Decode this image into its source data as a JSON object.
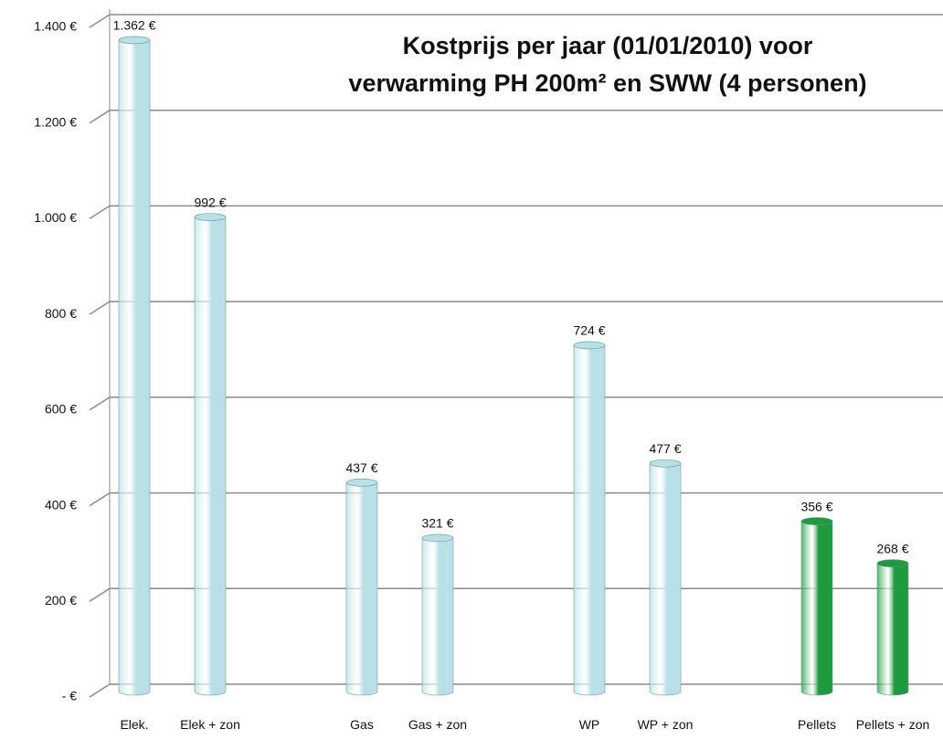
{
  "chart_data": {
    "type": "bar",
    "title": [
      "Kostprijs per jaar (01/01/2010) voor",
      "verwarming PH 200m² en SWW (4 personen)"
    ],
    "categories": [
      "Elek.",
      "Elek + zon",
      null,
      "Gas",
      "Gas + zon",
      null,
      "WP",
      "WP + zon",
      null,
      "Pellets",
      "Pellets + zon"
    ],
    "values": [
      1362,
      992,
      null,
      437,
      321,
      null,
      724,
      477,
      null,
      356,
      268
    ],
    "value_labels": [
      "1.362 €",
      "992 €",
      null,
      "437 €",
      "321 €",
      null,
      "724 €",
      "477 €",
      null,
      "356 €",
      "268 €"
    ],
    "colors": [
      "#b9e0e6",
      "#b9e0e6",
      null,
      "#b9e0e6",
      "#b9e0e6",
      null,
      "#b9e0e6",
      "#b9e0e6",
      null,
      "#1f9a3e",
      "#1f9a3e"
    ],
    "ylim": [
      0,
      1400
    ],
    "yticks": [
      {
        "value": 0,
        "label": "-  €"
      },
      {
        "value": 200,
        "label": "200 €"
      },
      {
        "value": 400,
        "label": "400 €"
      },
      {
        "value": 600,
        "label": "600 €"
      },
      {
        "value": 800,
        "label": "800 €"
      },
      {
        "value": 1000,
        "label": "1.000 €"
      },
      {
        "value": 1200,
        "label": "1.200 €"
      },
      {
        "value": 1400,
        "label": "1.400 €"
      }
    ],
    "grid": true
  }
}
